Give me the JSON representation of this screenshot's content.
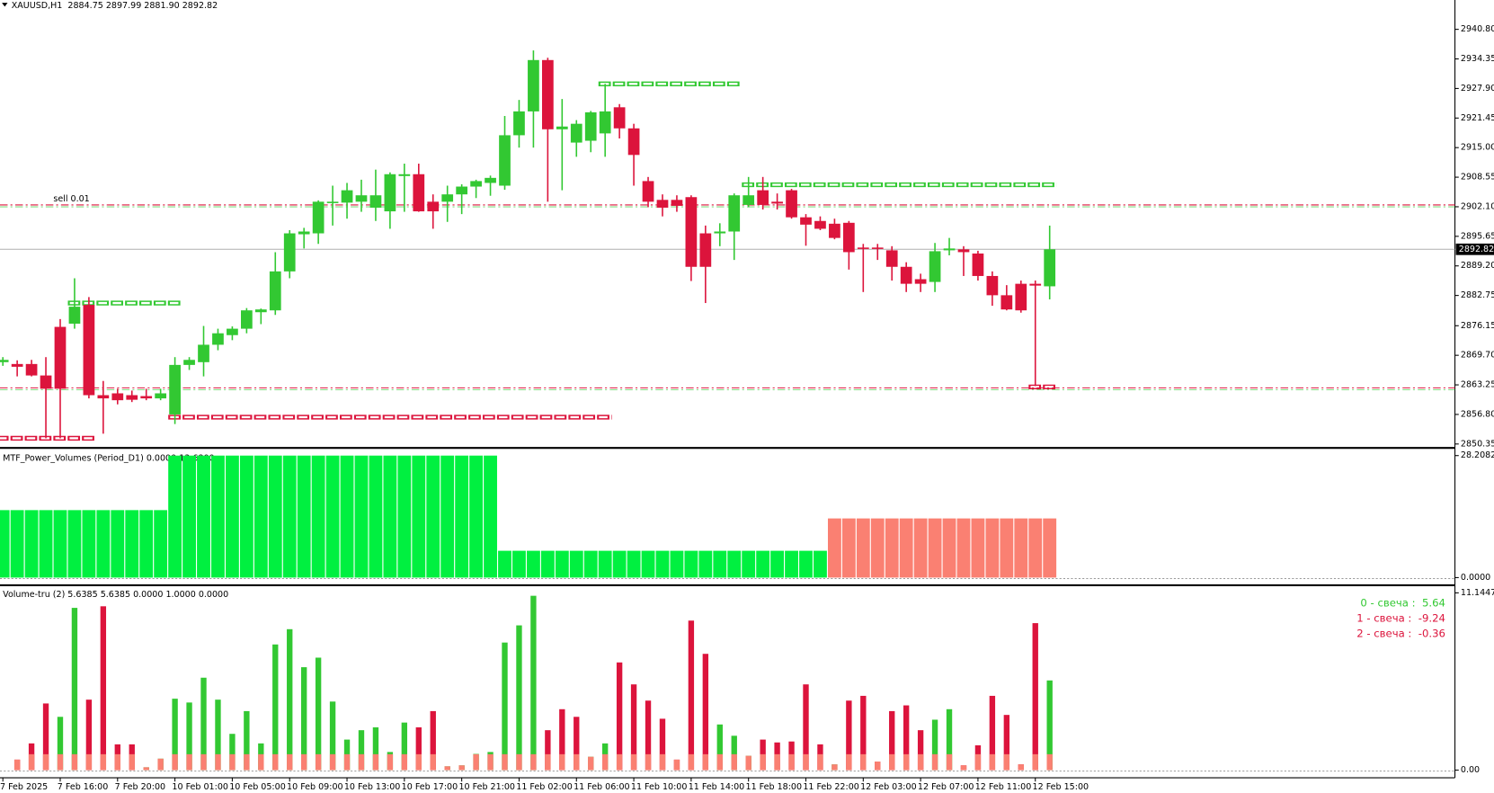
{
  "chart_data": [
    {
      "type": "candlestick",
      "title": "XAUUSD,H1  2884.75 2897.99 2881.90 2892.82",
      "categories": [
        "7 Feb 2025",
        null,
        null,
        null,
        "7 Feb 16:00",
        null,
        null,
        null,
        "7 Feb 20:00",
        null,
        null,
        null,
        "10 Feb 01:00",
        null,
        null,
        null,
        "10 Feb 05:00",
        null,
        null,
        null,
        "10 Feb 09:00",
        null,
        null,
        null,
        "10 Feb 13:00",
        null,
        null,
        null,
        "10 Feb 17:00",
        null,
        null,
        null,
        "10 Feb 21:00",
        null,
        null,
        null,
        "11 Feb 02:00",
        null,
        null,
        null,
        "11 Feb 06:00",
        null,
        null,
        null,
        "11 Feb 10:00",
        null,
        null,
        null,
        "11 Feb 14:00",
        null,
        null,
        null,
        "11 Feb 18:00",
        null,
        null,
        null,
        "11 Feb 22:00",
        null,
        null,
        null,
        "12 Feb 03:00",
        null,
        null,
        null,
        "12 Feb 07:00",
        null,
        null,
        null,
        "12 Feb 11:00",
        null,
        null,
        null,
        "12 Feb 15:00",
        null
      ],
      "open": [
        2868.2,
        2867.8,
        2867.8,
        2865.3,
        2875.9,
        2876.6,
        2880.7,
        2861.0,
        2861.4,
        2861.0,
        2860.8,
        2860.3,
        2856.8,
        2867.6,
        2868.2,
        2872.0,
        2874.1,
        2875.5,
        2879.1,
        2879.5,
        2888.0,
        2896.1,
        2896.3,
        2903.0,
        2903.0,
        2903.2,
        2901.9,
        2901.1,
        2908.8,
        2909.2,
        2903.2,
        2903.2,
        2904.8,
        2906.5,
        2907.3,
        2906.7,
        2917.7,
        2922.9,
        2934.1,
        2919.0,
        2916.1,
        2916.5,
        2918.1,
        2923.8,
        2919.2,
        2907.7,
        2903.6,
        2903.6,
        2904.2,
        2896.3,
        2896.3,
        2896.7,
        2902.5,
        2905.7,
        2903.2,
        2905.7,
        2899.8,
        2899.0,
        2898.4,
        2898.6,
        2893.2,
        2893.2,
        2892.6,
        2889.0,
        2886.3,
        2885.7,
        2892.6,
        2892.8,
        2891.9,
        2887.0,
        2882.8,
        2885.3,
        2885.3,
        2884.75
      ],
      "high": [
        2869.3,
        2868.6,
        2868.7,
        2869.3,
        2877.6,
        2886.5,
        2882.4,
        2864.1,
        2862.4,
        2862.0,
        2862.4,
        2862.4,
        2869.3,
        2869.3,
        2876.1,
        2875.5,
        2876.0,
        2880.0,
        2879.9,
        2892.2,
        2897.0,
        2897.5,
        2903.5,
        2906.7,
        2907.3,
        2908.0,
        2910.2,
        2909.6,
        2911.5,
        2911.5,
        2904.8,
        2906.7,
        2907.0,
        2908.0,
        2908.9,
        2921.9,
        2925.4,
        2936.2,
        2934.6,
        2925.6,
        2921.0,
        2923.0,
        2928.9,
        2924.5,
        2920.2,
        2908.6,
        2904.8,
        2904.6,
        2904.6,
        2898.0,
        2898.5,
        2905.0,
        2908.6,
        2908.6,
        2905.0,
        2906.0,
        2900.5,
        2900.0,
        2899.5,
        2899.0,
        2894.0,
        2894.0,
        2893.5,
        2890.0,
        2887.5,
        2894.2,
        2895.3,
        2893.5,
        2892.5,
        2888.0,
        2885.0,
        2886.0,
        2886.0,
        2897.99
      ],
      "low": [
        2867.4,
        2865.1,
        2865.1,
        2851.6,
        2851.6,
        2875.5,
        2860.3,
        2852.6,
        2859.0,
        2859.5,
        2859.9,
        2859.9,
        2854.7,
        2866.5,
        2865.1,
        2870.8,
        2873.0,
        2874.5,
        2876.5,
        2878.5,
        2886.5,
        2893.0,
        2894.0,
        2898.0,
        2899.5,
        2901.0,
        2899.0,
        2897.3,
        2901.0,
        2901.0,
        2897.3,
        2898.8,
        2900.5,
        2904.0,
        2904.5,
        2905.8,
        2915.0,
        2915.0,
        2903.2,
        2905.7,
        2913.0,
        2914.0,
        2913.0,
        2917.0,
        2906.7,
        2902.0,
        2900.0,
        2901.0,
        2885.9,
        2881.1,
        2893.5,
        2890.5,
        2902.0,
        2901.5,
        2901.5,
        2899.5,
        2893.6,
        2897.0,
        2895.0,
        2888.4,
        2883.5,
        2890.5,
        2886.0,
        2883.5,
        2883.5,
        2883.5,
        2891.5,
        2887.0,
        2886.0,
        2880.5,
        2879.5,
        2879.0,
        2863.0,
        2881.9
      ],
      "close": [
        2868.7,
        2867.2,
        2865.3,
        2862.4,
        2862.4,
        2880.3,
        2861.0,
        2860.3,
        2859.9,
        2860.0,
        2860.3,
        2861.4,
        2867.6,
        2868.7,
        2872.0,
        2874.5,
        2875.5,
        2879.5,
        2879.7,
        2888.0,
        2896.3,
        2896.7,
        2903.2,
        2903.2,
        2905.7,
        2904.6,
        2904.6,
        2909.2,
        2909.2,
        2901.1,
        2901.1,
        2904.8,
        2906.5,
        2907.7,
        2908.4,
        2917.7,
        2922.9,
        2934.1,
        2919.0,
        2919.6,
        2920.2,
        2922.7,
        2922.9,
        2919.2,
        2913.4,
        2903.2,
        2901.9,
        2902.3,
        2889.0,
        2889.0,
        2896.7,
        2904.6,
        2904.6,
        2902.5,
        2902.8,
        2899.8,
        2898.2,
        2897.3,
        2895.3,
        2892.2,
        2893.0,
        2893.0,
        2889.0,
        2885.3,
        2885.3,
        2892.4,
        2893.0,
        2892.2,
        2887.0,
        2882.8,
        2879.7,
        2879.5,
        2884.9,
        2892.82
      ],
      "up_color": "#32c832",
      "down_color": "#dc143c",
      "ylim": [
        2849.9,
        2947.2
      ],
      "yticks": [
        {
          "value": 2940.8,
          "label": "2940.80"
        },
        {
          "value": 2934.35,
          "label": "2934.35"
        },
        {
          "value": 2927.9,
          "label": "2927.90"
        },
        {
          "value": 2921.45,
          "label": "2921.45"
        },
        {
          "value": 2915.0,
          "label": "2915.00"
        },
        {
          "value": 2908.55,
          "label": "2908.55"
        },
        {
          "value": 2902.1,
          "label": "2902.10"
        },
        {
          "value": 2895.65,
          "label": "2895.65"
        },
        {
          "value": 2889.2,
          "label": "2889.20"
        },
        {
          "value": 2882.75,
          "label": "2882.75"
        },
        {
          "value": 2876.15,
          "label": "2876.15"
        },
        {
          "value": 2869.7,
          "label": "2869.70"
        },
        {
          "value": 2863.25,
          "label": "2863.25"
        },
        {
          "value": 2856.8,
          "label": "2856.80"
        },
        {
          "value": 2850.35,
          "label": "2850.35"
        }
      ],
      "last_price": {
        "value": 2892.82,
        "label": "2892.82"
      },
      "order_lines": [
        {
          "value": 2902.5,
          "label": "sell 0.01",
          "color": "#dc143c"
        },
        {
          "value": 2862.6,
          "color": "#dc143c"
        }
      ],
      "levels": [
        {
          "value": 2881.1,
          "start": 5,
          "end": 12,
          "color": "#32c832"
        },
        {
          "value": 2928.9,
          "start": 42,
          "end": 51,
          "color": "#32c832"
        },
        {
          "value": 2906.9,
          "start": 52,
          "end": 73,
          "color": "#32c832"
        },
        {
          "value": 2856.2,
          "start": 12,
          "end": 42,
          "color": "#dc143c"
        },
        {
          "value": 2851.6,
          "start": 0,
          "end": 6,
          "color": "#dc143c"
        },
        {
          "value": 2862.8,
          "start": 72,
          "end": 73,
          "color": "#dc143c"
        }
      ]
    },
    {
      "type": "bar",
      "title": "MTF_Power_Volumes (Period_D1) 0.0000 13.6800",
      "series": [
        {
          "color": "#00f040",
          "values": [
            15.6,
            15.6,
            15.6,
            15.6,
            15.6,
            15.6,
            15.6,
            15.6,
            15.6,
            15.6,
            15.6,
            15.6,
            28.2082,
            28.2082,
            28.2082,
            28.2082,
            28.2082,
            28.2082,
            28.2082,
            28.2082,
            28.2082,
            28.2082,
            28.2082,
            28.2082,
            28.2082,
            28.2082,
            28.2082,
            28.2082,
            28.2082,
            28.2082,
            28.2082,
            28.2082,
            28.2082,
            28.2082,
            28.2082,
            6.2,
            6.2,
            6.2,
            6.2,
            6.2,
            6.2,
            6.2,
            6.2,
            6.2,
            6.2,
            6.2,
            6.2,
            6.2,
            6.2,
            6.2,
            6.2,
            6.2,
            6.2,
            6.2,
            6.2,
            6.2,
            6.2,
            6.2,
            null,
            null,
            null,
            null,
            null,
            null,
            null,
            null,
            null,
            null,
            null,
            null,
            null,
            null,
            null,
            null
          ]
        },
        {
          "color": "#fa8072",
          "values": [
            null,
            null,
            null,
            null,
            null,
            null,
            null,
            null,
            null,
            null,
            null,
            null,
            null,
            null,
            null,
            null,
            null,
            null,
            null,
            null,
            null,
            null,
            null,
            null,
            null,
            null,
            null,
            null,
            null,
            null,
            null,
            null,
            null,
            null,
            null,
            null,
            null,
            null,
            null,
            null,
            null,
            null,
            null,
            null,
            null,
            null,
            null,
            null,
            null,
            null,
            null,
            null,
            null,
            null,
            null,
            null,
            null,
            null,
            13.68,
            13.68,
            13.68,
            13.68,
            13.68,
            13.68,
            13.68,
            13.68,
            13.68,
            13.68,
            13.68,
            13.68,
            13.68,
            13.68,
            13.68,
            13.68
          ]
        }
      ],
      "ylim": [
        0,
        28.2082
      ],
      "yticks": [
        {
          "value": 28.2082,
          "label": "28.2082"
        },
        {
          "value": 0,
          "label": "0.0000"
        }
      ]
    },
    {
      "type": "bar",
      "title": "Volume-tru (2) 5.6385 5.6385 0.0000 1.0000 0.0000",
      "series": [
        {
          "color": "#32c832",
          "values": [
            null,
            null,
            null,
            null,
            3.35,
            10.2,
            null,
            null,
            null,
            null,
            0.18,
            0.72,
            4.49,
            4.25,
            5.81,
            4.43,
            2.28,
            3.71,
            1.68,
            7.9,
            8.86,
            6.47,
            7.07,
            4.31,
            1.92,
            2.51,
            2.69,
            1.14,
            2.99,
            null,
            null,
            0.24,
            0.3,
            1.02,
            1.14,
            8.02,
            9.1,
            10.96,
            null,
            null,
            null,
            0.84,
            1.68,
            null,
            null,
            null,
            null,
            null,
            null,
            null,
            2.87,
            2.16,
            0.9,
            null,
            null,
            null,
            null,
            null,
            0.36,
            null,
            null,
            null,
            null,
            null,
            null,
            3.17,
            3.83,
            null,
            null,
            null,
            null,
            null,
            null,
            5.6385
          ]
        },
        {
          "color": "#dc143c",
          "values": [
            null,
            0.66,
            1.68,
            4.19,
            null,
            null,
            4.43,
            10.3,
            1.62,
            1.62,
            null,
            null,
            null,
            null,
            null,
            null,
            null,
            null,
            null,
            null,
            null,
            null,
            null,
            null,
            null,
            null,
            null,
            null,
            null,
            2.69,
            3.71,
            null,
            null,
            null,
            null,
            null,
            null,
            null,
            2.51,
            3.83,
            3.35,
            null,
            null,
            6.77,
            5.39,
            4.37,
            3.23,
            0.66,
            9.4,
            7.31,
            null,
            null,
            null,
            1.92,
            1.74,
            1.8,
            5.39,
            1.62,
            null,
            4.37,
            4.67,
            0.54,
            3.71,
            4.07,
            2.51,
            null,
            null,
            0.3,
            1.56,
            4.67,
            3.47,
            0.36,
            9.24,
            null
          ]
        },
        {
          "color": "#fa8072",
          "values": [
            null,
            0.66,
            1,
            1,
            1,
            1,
            1,
            1,
            1,
            1,
            0.18,
            0.72,
            1,
            1,
            1,
            1,
            1,
            1,
            1,
            1,
            1,
            1,
            1,
            1,
            1,
            1,
            1,
            1,
            1,
            1,
            1,
            0.24,
            0.3,
            1,
            1,
            1,
            1,
            1,
            1,
            1,
            1,
            0.84,
            1,
            1,
            1,
            1,
            1,
            0.66,
            1,
            1,
            1,
            1,
            0.9,
            1,
            1,
            1,
            1,
            1,
            0.36,
            1,
            1,
            0.54,
            1,
            1,
            1,
            1,
            1,
            0.3,
            1,
            1,
            1,
            0.36,
            1,
            1
          ]
        }
      ],
      "ylim": [
        0,
        11.1447
      ],
      "yticks": [
        {
          "value": 11.1447,
          "label": "11.1447"
        },
        {
          "value": 0,
          "label": "0.00"
        }
      ],
      "annotations": [
        {
          "text": "0 - свеча :  5.64",
          "color": "#32c832"
        },
        {
          "text": "1 - свеча :  -9.24",
          "color": "#dc143c"
        },
        {
          "text": "2 - свеча :  -0.36",
          "color": "#dc143c"
        }
      ]
    }
  ]
}
